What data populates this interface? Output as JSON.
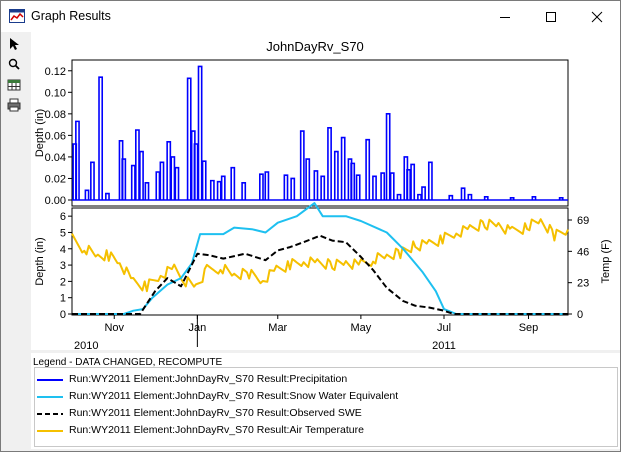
{
  "window": {
    "title": "Graph Results",
    "colors": {
      "titlebar": "#ffffff",
      "frame": "#f0f0f0"
    }
  },
  "toolbar": {
    "icons": [
      "select-arrow-icon",
      "zoom-magnifier-icon",
      "table-icon",
      "print-icon"
    ]
  },
  "chart": {
    "title": "JohnDayRv_S70",
    "colors": {
      "precip": "#0000ff",
      "swe": "#1ec0f0",
      "observed": "#000000",
      "air_temp": "#f5c000"
    }
  },
  "chart_data": [
    {
      "type": "bar",
      "title": "JohnDayRv_S70",
      "ylabel": "Depth (in)",
      "ylim": [
        0,
        0.13
      ],
      "yticks": [
        "0.00",
        "0.02",
        "0.04",
        "0.06",
        "0.08",
        "0.10",
        "0.12"
      ],
      "grid": false,
      "series": [
        {
          "name": "Run:WY2011 Element:JohnDayRv_S70 Result:Precipitation",
          "points": [
            [
              "2010-10-03",
              0.052
            ],
            [
              "2010-10-05",
              0.073
            ],
            [
              "2010-10-12",
              0.009
            ],
            [
              "2010-10-16",
              0.035
            ],
            [
              "2010-10-22",
              0.114
            ],
            [
              "2010-10-27",
              0.006
            ],
            [
              "2010-11-06",
              0.055
            ],
            [
              "2010-11-08",
              0.038
            ],
            [
              "2010-11-15",
              0.032
            ],
            [
              "2010-11-18",
              0.065
            ],
            [
              "2010-11-21",
              0.045
            ],
            [
              "2010-11-25",
              0.016
            ],
            [
              "2010-12-03",
              0.026
            ],
            [
              "2010-12-06",
              0.035
            ],
            [
              "2010-12-11",
              0.054
            ],
            [
              "2010-12-14",
              0.04
            ],
            [
              "2010-12-17",
              0.03
            ],
            [
              "2010-12-26",
              0.113
            ],
            [
              "2010-12-29",
              0.064
            ],
            [
              "2010-12-31",
              0.052
            ],
            [
              "2011-01-03",
              0.124
            ],
            [
              "2011-01-06",
              0.036
            ],
            [
              "2011-01-12",
              0.018
            ],
            [
              "2011-01-17",
              0.017
            ],
            [
              "2011-01-20",
              0.022
            ],
            [
              "2011-01-27",
              0.03
            ],
            [
              "2011-02-04",
              0.016
            ],
            [
              "2011-02-17",
              0.024
            ],
            [
              "2011-02-21",
              0.026
            ],
            [
              "2011-03-07",
              0.023
            ],
            [
              "2011-03-12",
              0.02
            ],
            [
              "2011-03-19",
              0.064
            ],
            [
              "2011-03-23",
              0.038
            ],
            [
              "2011-03-29",
              0.027
            ],
            [
              "2011-04-03",
              0.022
            ],
            [
              "2011-04-08",
              0.067
            ],
            [
              "2011-04-13",
              0.045
            ],
            [
              "2011-04-18",
              0.058
            ],
            [
              "2011-04-23",
              0.038
            ],
            [
              "2011-04-25",
              0.034
            ],
            [
              "2011-04-29",
              0.023
            ],
            [
              "2011-05-06",
              0.056
            ],
            [
              "2011-05-11",
              0.022
            ],
            [
              "2011-05-17",
              0.025
            ],
            [
              "2011-05-21",
              0.08
            ],
            [
              "2011-05-24",
              0.025
            ],
            [
              "2011-05-29",
              0.005
            ],
            [
              "2011-06-03",
              0.04
            ],
            [
              "2011-06-05",
              0.028
            ],
            [
              "2011-06-08",
              0.033
            ],
            [
              "2011-06-13",
              0.005
            ],
            [
              "2011-06-16",
              0.012
            ],
            [
              "2011-06-21",
              0.035
            ],
            [
              "2011-07-06",
              0.004
            ],
            [
              "2011-07-15",
              0.011
            ],
            [
              "2011-07-20",
              0.005
            ],
            [
              "2011-08-01",
              0.003
            ],
            [
              "2011-08-20",
              0.002
            ],
            [
              "2011-09-05",
              0.003
            ],
            [
              "2011-09-25",
              0.002
            ]
          ]
        }
      ]
    },
    {
      "type": "line",
      "xlabel": "",
      "ylabel": "Depth (in)",
      "y2label": "Temp (F)",
      "xlim": [
        "2010-10-01",
        "2011-09-30"
      ],
      "ylim": [
        0,
        6.5
      ],
      "y2lim": [
        0,
        69
      ],
      "yticks": [
        "0",
        "1",
        "2",
        "3",
        "4",
        "5",
        "6"
      ],
      "y2ticks": [
        "0",
        "23",
        "46",
        "69"
      ],
      "xticks": [
        "Nov",
        "Jan",
        "Mar",
        "May",
        "Jul",
        "Sep"
      ],
      "xyears": [
        "2010",
        "2011"
      ],
      "grid": false,
      "series": [
        {
          "name": "Run:WY2011 Element:JohnDayRv_S70 Result:Snow Water Equivalent",
          "axis": "left",
          "points": [
            [
              "2010-10-01",
              0.0
            ],
            [
              "2010-11-08",
              0.0
            ],
            [
              "2010-11-15",
              0.2
            ],
            [
              "2010-11-22",
              0.3
            ],
            [
              "2010-11-29",
              1.0
            ],
            [
              "2010-12-10",
              1.8
            ],
            [
              "2010-12-20",
              2.2
            ],
            [
              "2010-12-28",
              3.1
            ],
            [
              "2011-01-03",
              4.9
            ],
            [
              "2011-01-20",
              4.9
            ],
            [
              "2011-01-28",
              5.3
            ],
            [
              "2011-02-10",
              5.2
            ],
            [
              "2011-02-20",
              5.0
            ],
            [
              "2011-03-01",
              5.6
            ],
            [
              "2011-03-15",
              6.0
            ],
            [
              "2011-03-28",
              6.8
            ],
            [
              "2011-04-03",
              6.0
            ],
            [
              "2011-04-20",
              6.0
            ],
            [
              "2011-05-01",
              5.7
            ],
            [
              "2011-05-20",
              5.0
            ],
            [
              "2011-06-01",
              4.0
            ],
            [
              "2011-06-15",
              2.6
            ],
            [
              "2011-06-25",
              1.4
            ],
            [
              "2011-07-01",
              0.3
            ],
            [
              "2011-07-10",
              0.0
            ],
            [
              "2011-09-30",
              0.0
            ]
          ]
        },
        {
          "name": "Run:WY2011 Element:JohnDayRv_S70 Result:Observed SWE",
          "axis": "left",
          "points": [
            [
              "2010-10-01",
              0.0
            ],
            [
              "2010-11-20",
              0.0
            ],
            [
              "2010-12-01",
              1.4
            ],
            [
              "2010-12-10",
              2.2
            ],
            [
              "2010-12-20",
              1.7
            ],
            [
              "2011-01-01",
              3.7
            ],
            [
              "2011-01-10",
              3.6
            ],
            [
              "2011-01-20",
              3.4
            ],
            [
              "2011-02-05",
              3.7
            ],
            [
              "2011-02-20",
              3.3
            ],
            [
              "2011-03-01",
              3.9
            ],
            [
              "2011-03-10",
              4.1
            ],
            [
              "2011-03-20",
              4.4
            ],
            [
              "2011-04-01",
              4.8
            ],
            [
              "2011-04-10",
              4.5
            ],
            [
              "2011-04-20",
              4.4
            ],
            [
              "2011-05-01",
              3.5
            ],
            [
              "2011-05-10",
              2.7
            ],
            [
              "2011-05-20",
              1.6
            ],
            [
              "2011-06-01",
              0.8
            ],
            [
              "2011-06-10",
              0.5
            ],
            [
              "2011-06-20",
              0.4
            ],
            [
              "2011-07-01",
              0.2
            ],
            [
              "2011-07-08",
              0.0
            ],
            [
              "2011-09-30",
              0.0
            ]
          ]
        },
        {
          "name": "Run:WY2011 Element:JohnDayRv_S70 Result:Air Temperature",
          "axis": "right",
          "points": [
            [
              "2010-10-01",
              55
            ],
            [
              "2010-10-10",
              48
            ],
            [
              "2010-10-20",
              42
            ],
            [
              "2010-10-28",
              43
            ],
            [
              "2010-11-05",
              38
            ],
            [
              "2010-11-15",
              24
            ],
            [
              "2010-11-25",
              20
            ],
            [
              "2010-12-05",
              28
            ],
            [
              "2010-12-15",
              33
            ],
            [
              "2010-12-22",
              25
            ],
            [
              "2010-12-31",
              21
            ],
            [
              "2011-01-08",
              32
            ],
            [
              "2011-01-18",
              34
            ],
            [
              "2011-01-28",
              28
            ],
            [
              "2011-02-08",
              30
            ],
            [
              "2011-02-18",
              25
            ],
            [
              "2011-02-28",
              33
            ],
            [
              "2011-03-10",
              36
            ],
            [
              "2011-03-20",
              38
            ],
            [
              "2011-03-30",
              37
            ],
            [
              "2011-04-10",
              36
            ],
            [
              "2011-04-20",
              38
            ],
            [
              "2011-05-01",
              36
            ],
            [
              "2011-05-10",
              40
            ],
            [
              "2011-05-20",
              42
            ],
            [
              "2011-05-30",
              45
            ],
            [
              "2011-06-10",
              50
            ],
            [
              "2011-06-20",
              52
            ],
            [
              "2011-06-30",
              55
            ],
            [
              "2011-07-10",
              59
            ],
            [
              "2011-07-20",
              62
            ],
            [
              "2011-07-31",
              66
            ],
            [
              "2011-08-10",
              66
            ],
            [
              "2011-08-20",
              60
            ],
            [
              "2011-08-31",
              64
            ],
            [
              "2011-09-10",
              68
            ],
            [
              "2011-09-20",
              58
            ],
            [
              "2011-09-30",
              62
            ]
          ]
        }
      ]
    }
  ],
  "legend": {
    "title": "Legend - DATA CHANGED, RECOMPUTE",
    "items": [
      {
        "label": "Run:WY2011 Element:JohnDayRv_S70 Result:Precipitation",
        "color": "#0000ff",
        "style": "solid"
      },
      {
        "label": "Run:WY2011 Element:JohnDayRv_S70 Result:Snow Water Equivalent",
        "color": "#1ec0f0",
        "style": "solid"
      },
      {
        "label": "Run:WY2011 Element:JohnDayRv_S70 Result:Observed SWE",
        "color": "#000000",
        "style": "dashed"
      },
      {
        "label": "Run:WY2011 Element:JohnDayRv_S70 Result:Air Temperature",
        "color": "#f5c000",
        "style": "solid"
      }
    ]
  }
}
